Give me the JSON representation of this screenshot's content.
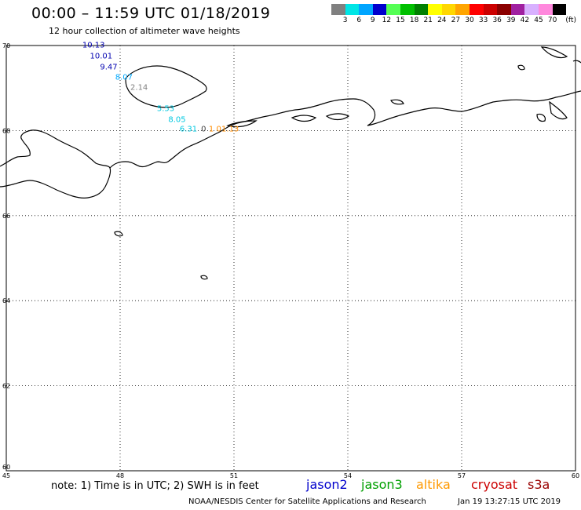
{
  "title": "00:00 – 11:59 UTC 01/18/2019",
  "subtitle": "12 hour collection of altimeter wave heights",
  "legend": {
    "unit": "(ft)",
    "colors": [
      "#808080",
      "#00e5e5",
      "#00a5ff",
      "#0000cd",
      "#55ff55",
      "#00c000",
      "#008000",
      "#ffff00",
      "#ffd700",
      "#ffa500",
      "#ff0000",
      "#cc0000",
      "#8b0000",
      "#a020a0",
      "#d8b0ff",
      "#ff88dd",
      "#000000"
    ],
    "ticks": [
      "3",
      "6",
      "9",
      "12",
      "15",
      "18",
      "21",
      "24",
      "27",
      "30",
      "33",
      "36",
      "39",
      "42",
      "45",
      "70"
    ]
  },
  "map": {
    "lat_labels": [
      "70",
      "68",
      "66",
      "64",
      "62",
      "60"
    ],
    "lon_labels": [
      "45",
      "48",
      "51",
      "54",
      "57",
      "60"
    ],
    "grid_color": "#000000"
  },
  "observations": [
    {
      "value": "10.13",
      "color": "#0000b0",
      "lon": 47.3,
      "lat": 70.0
    },
    {
      "value": "10.01",
      "color": "#0000b0",
      "lon": 47.5,
      "lat": 69.75
    },
    {
      "value": "9.47",
      "color": "#0000b0",
      "lon": 47.7,
      "lat": 69.48
    },
    {
      "value": "8.07",
      "color": "#00aaff",
      "lon": 48.1,
      "lat": 69.25
    },
    {
      "value": "2.14",
      "color": "#808080",
      "lon": 48.5,
      "lat": 69.0
    },
    {
      "value": "5.53",
      "color": "#00c8e0",
      "lon": 49.2,
      "lat": 68.5
    },
    {
      "value": "8.05",
      "color": "#00c8e0",
      "lon": 49.5,
      "lat": 68.25
    },
    {
      "value": "6.31",
      "color": "#00c8e0",
      "lon": 49.8,
      "lat": 68.02
    },
    {
      "value": "0",
      "color": "#404040",
      "lon": 50.2,
      "lat": 68.02
    },
    {
      "value": "1",
      "color": "#ff8c00",
      "lon": 50.4,
      "lat": 68.02
    },
    {
      "value": "0",
      "color": "#ff8c00",
      "lon": 50.6,
      "lat": 68.02
    },
    {
      "value": "1.13",
      "color": "#ff8c00",
      "lon": 50.9,
      "lat": 68.02
    }
  ],
  "note": "note: 1) Time is in UTC; 2) SWH is in feet",
  "satellites": [
    {
      "name": "jason2",
      "color": "#0000cc"
    },
    {
      "name": "jason3",
      "color": "#00a000"
    },
    {
      "name": "altika",
      "color": "#ff9900"
    },
    {
      "name": "cryosat",
      "color": "#cc0000"
    },
    {
      "name": "s3a",
      "color": "#990000"
    }
  ],
  "credit": "NOAA/NESDIS Center for Satellite Applications and Research",
  "timestamp": "Jan 19 13:27:15 UTC 2019"
}
